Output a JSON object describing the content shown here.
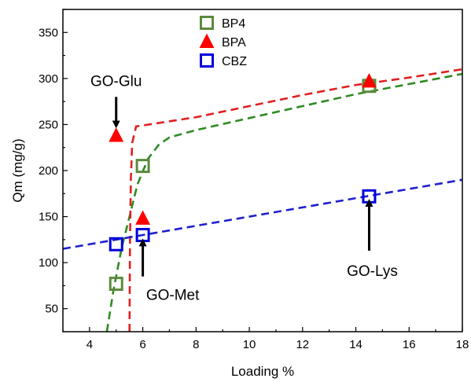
{
  "chart_data": {
    "type": "scatter",
    "xlabel": "Loading %",
    "ylabel": "Qm (mg/g)",
    "xlim": [
      3,
      18
    ],
    "ylim": [
      25,
      375
    ],
    "xticks": [
      4,
      6,
      8,
      10,
      12,
      14,
      16,
      18
    ],
    "yticks": [
      50,
      100,
      150,
      200,
      250,
      300,
      350
    ],
    "grid": false,
    "legend_position": "top-center",
    "series": [
      {
        "name": "BP4",
        "marker": "open-square",
        "color": "#5b8a3c",
        "points": [
          [
            5.0,
            77
          ],
          [
            6.0,
            205
          ],
          [
            14.5,
            292
          ]
        ],
        "fit_color": "#2e8b22",
        "fit_curve": [
          [
            4.65,
            25
          ],
          [
            4.9,
            70
          ],
          [
            5.2,
            115
          ],
          [
            5.5,
            150
          ],
          [
            5.8,
            185
          ],
          [
            6.2,
            213
          ],
          [
            6.6,
            228
          ],
          [
            7.0,
            236
          ],
          [
            8.0,
            244
          ],
          [
            10.0,
            257
          ],
          [
            12.0,
            270
          ],
          [
            14.0,
            283
          ],
          [
            16.0,
            294
          ],
          [
            18.0,
            305
          ]
        ]
      },
      {
        "name": "BPA",
        "marker": "filled-triangle",
        "color": "#ff0000",
        "points": [
          [
            5.0,
            238
          ],
          [
            6.0,
            148
          ],
          [
            14.5,
            297
          ]
        ],
        "fit_color": "#e02020",
        "fit_curve": [
          [
            5.5,
            25
          ],
          [
            5.52,
            120
          ],
          [
            5.55,
            190
          ],
          [
            5.6,
            230
          ],
          [
            5.75,
            248
          ],
          [
            6.0,
            249
          ],
          [
            8.0,
            258
          ],
          [
            10.0,
            270
          ],
          [
            12.0,
            282
          ],
          [
            14.0,
            293
          ],
          [
            16.0,
            301
          ],
          [
            18.0,
            310
          ]
        ]
      },
      {
        "name": "CBZ",
        "marker": "open-square",
        "color": "#0000dd",
        "points": [
          [
            5.0,
            120
          ],
          [
            6.0,
            130
          ],
          [
            14.5,
            172
          ]
        ],
        "fit_color": "#2020cc",
        "fit_curve": [
          [
            3.0,
            115
          ],
          [
            18.0,
            190
          ]
        ]
      }
    ],
    "annotations": [
      {
        "text": "GO-Glu",
        "arrow_from": [
          5.0,
          280
        ],
        "arrow_to": [
          5.0,
          250
        ]
      },
      {
        "text": "GO-Met",
        "arrow_from": [
          6.0,
          85
        ],
        "arrow_to": [
          6.0,
          122
        ]
      },
      {
        "text": "GO-Lys",
        "arrow_from": [
          14.5,
          113
        ],
        "arrow_to": [
          14.5,
          165
        ]
      }
    ]
  }
}
